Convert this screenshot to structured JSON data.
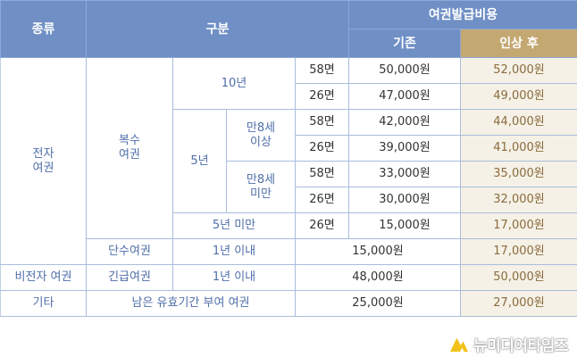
{
  "header": {
    "type": "종류",
    "category": "구분",
    "fee": "여권발급비용",
    "before": "기존",
    "after": "인상 후"
  },
  "colors": {
    "header": "#6f8fc5",
    "gold_header": "#c4a872",
    "gold_cell": "#f5f1e6",
    "label_text": "#4f6ea8"
  },
  "rows": {
    "electronic": "전자\n여권",
    "multiple": "복수\n여권",
    "y10": "10년",
    "y5": "5년",
    "age8up": "만8세\n이상",
    "age8down": "만8세\n미만",
    "under5": "5년 미만",
    "single": "단수여권",
    "within1": "1년 이내",
    "nonelectronic": "비전자 여권",
    "emergency": "긴급여권",
    "other": "기타",
    "remaining": "남은 유효기간 부여 여권"
  },
  "prices": [
    {
      "pages": "58면",
      "before": "50,000원",
      "after": "52,000원"
    },
    {
      "pages": "26면",
      "before": "47,000원",
      "after": "49,000원"
    },
    {
      "pages": "58면",
      "before": "42,000원",
      "after": "44,000원"
    },
    {
      "pages": "26면",
      "before": "39,000원",
      "after": "41,000원"
    },
    {
      "pages": "58면",
      "before": "33,000원",
      "after": "35,000원"
    },
    {
      "pages": "26면",
      "before": "30,000원",
      "after": "32,000원"
    },
    {
      "pages": "26면",
      "before": "15,000원",
      "after": "17,000원"
    },
    {
      "before": "15,000원",
      "after": "17,000원"
    },
    {
      "before": "48,000원",
      "after": "50,000원"
    },
    {
      "before": "25,000원",
      "after": "27,000원"
    }
  ],
  "watermark": "뉴미디어타임즈"
}
